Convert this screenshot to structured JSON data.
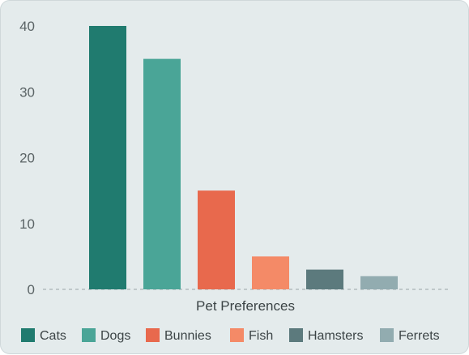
{
  "chart_data": {
    "type": "bar",
    "title": "",
    "xlabel": "Pet Preferences",
    "ylabel": "",
    "ylim": [
      0,
      40
    ],
    "yticks": [
      "0",
      "10",
      "20",
      "30",
      "40"
    ],
    "grid": false,
    "legend_position": "bottom",
    "categories": [
      "Cats",
      "Dogs",
      "Bunnies",
      "Fish",
      "Hamsters",
      "Ferrets"
    ],
    "values": [
      40,
      35,
      15,
      5,
      3,
      2
    ],
    "colors": [
      "#207b6f",
      "#4aa597",
      "#e8694d",
      "#f48a67",
      "#5c7a7d",
      "#92acb0"
    ]
  }
}
